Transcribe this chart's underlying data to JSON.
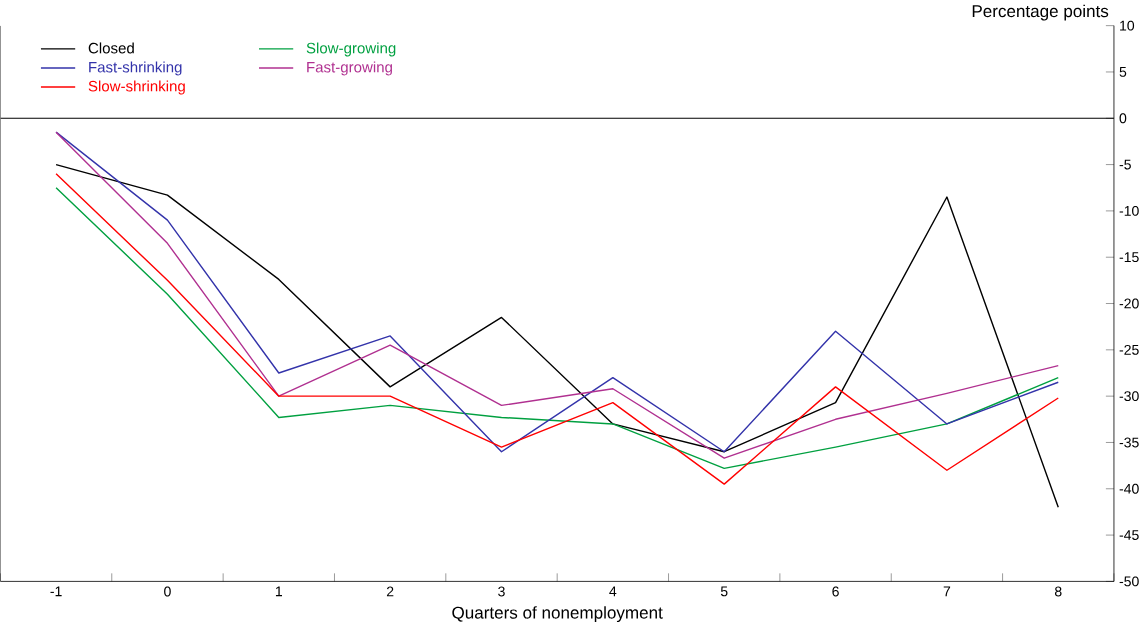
{
  "chart_data": {
    "type": "line",
    "xlabel": "Quarters of nonemployment",
    "ylabel": "Percentage points",
    "categories": [
      "-1",
      "0",
      "1",
      "2",
      "3",
      "4",
      "5",
      "6",
      "7",
      "8"
    ],
    "ylim": [
      -50,
      10
    ],
    "yticks": [
      -50,
      -45,
      -40,
      -35,
      -30,
      -25,
      -20,
      -15,
      -10,
      -5,
      0,
      5,
      10
    ],
    "grid": false,
    "legend": "top left",
    "marker": "none",
    "line_style": "solid",
    "ref_lines": [
      {
        "axis": "y",
        "value": 0,
        "color": "#000000"
      }
    ],
    "series": [
      {
        "name": "Closed",
        "color": "#000000",
        "values": [
          -5,
          -8.3,
          -17.4,
          -29,
          -21.5,
          -33,
          -36,
          -30.7,
          -8.5,
          -42
        ]
      },
      {
        "name": "Fast-shrinking",
        "color": "#3333aa",
        "values": [
          -1.5,
          -11,
          -27.5,
          -23.5,
          -36,
          -28,
          -36,
          -23,
          -33,
          -28.5
        ]
      },
      {
        "name": "Slow-shrinking",
        "color": "#ff0000",
        "values": [
          -6,
          -17.5,
          -30,
          -30,
          -35.5,
          -30.7,
          -39.5,
          -29,
          -38,
          -30.2
        ]
      },
      {
        "name": "Slow-growing",
        "color": "#00a040",
        "values": [
          -7.5,
          -19,
          -32.3,
          -31,
          -32.3,
          -33,
          -37.8,
          -35.5,
          -33,
          -28
        ]
      },
      {
        "name": "Fast-growing",
        "color": "#b03090",
        "values": [
          -1.5,
          -13.5,
          -30,
          -24.5,
          -31,
          -29.2,
          -36.7,
          -32.5,
          -29.7,
          -26.7
        ]
      }
    ]
  }
}
